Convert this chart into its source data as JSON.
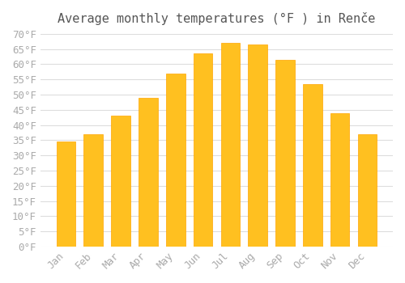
{
  "title": "Average monthly temperatures (°F ) in Renče",
  "months": [
    "Jan",
    "Feb",
    "Mar",
    "Apr",
    "May",
    "Jun",
    "Jul",
    "Aug",
    "Sep",
    "Oct",
    "Nov",
    "Dec"
  ],
  "values": [
    34.5,
    37,
    43,
    49,
    57,
    63.5,
    67,
    66.5,
    61.5,
    53.5,
    44,
    37
  ],
  "bar_color_main": "#FFC020",
  "bar_color_edge": "#FFA500",
  "ylim": [
    0,
    70
  ],
  "ytick_step": 5,
  "background_color": "#ffffff",
  "grid_color": "#dddddd",
  "title_fontsize": 11,
  "tick_fontsize": 9
}
